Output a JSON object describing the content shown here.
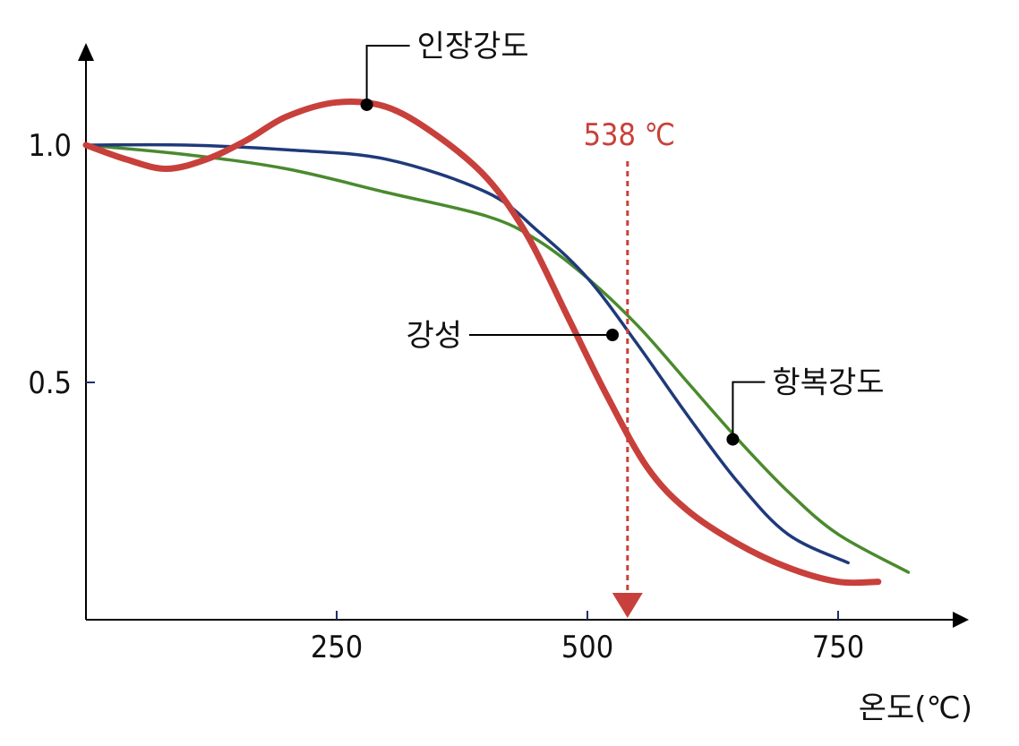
{
  "chart_data": {
    "type": "line",
    "xlabel": "온도(℃)",
    "x_ticks": [
      250,
      500,
      750
    ],
    "y_ticks": [
      0.5,
      1.0
    ],
    "y_tick_labels": [
      "0.5",
      "1.0"
    ],
    "xlim": [
      0,
      880
    ],
    "ylim": [
      0,
      1.2
    ],
    "grid": false,
    "series": [
      {
        "name": "인장강도",
        "color": "#c8403b",
        "x": [
          0,
          40,
          80,
          120,
          160,
          200,
          250,
          300,
          350,
          400,
          440,
          480,
          520,
          560,
          600,
          650,
          700,
          750,
          790
        ],
        "y": [
          1.0,
          0.97,
          0.95,
          0.97,
          1.01,
          1.06,
          1.09,
          1.08,
          1.02,
          0.93,
          0.81,
          0.64,
          0.47,
          0.32,
          0.23,
          0.16,
          0.11,
          0.08,
          0.08
        ]
      },
      {
        "name": "강성",
        "color": "#1f3a7a",
        "x": [
          0,
          100,
          200,
          300,
          400,
          450,
          500,
          550,
          600,
          650,
          700,
          760
        ],
        "y": [
          1.0,
          1.0,
          0.99,
          0.97,
          0.9,
          0.82,
          0.72,
          0.58,
          0.43,
          0.29,
          0.18,
          0.12
        ]
      },
      {
        "name": "항복강도",
        "color": "#4a8a2e",
        "x": [
          0,
          100,
          200,
          300,
          400,
          450,
          500,
          550,
          600,
          650,
          700,
          750,
          820
        ],
        "y": [
          1.0,
          0.98,
          0.95,
          0.9,
          0.85,
          0.8,
          0.72,
          0.62,
          0.5,
          0.38,
          0.27,
          0.18,
          0.1
        ]
      }
    ],
    "callouts": [
      {
        "label": "인장강도",
        "x": 280,
        "y": 1.085
      },
      {
        "label": "강성",
        "x": 525,
        "y": 0.6
      },
      {
        "label": "항복강도",
        "x": 645,
        "y": 0.38
      }
    ],
    "marker": {
      "x": 540,
      "label": "538 ℃",
      "color": "#c8403b"
    }
  }
}
